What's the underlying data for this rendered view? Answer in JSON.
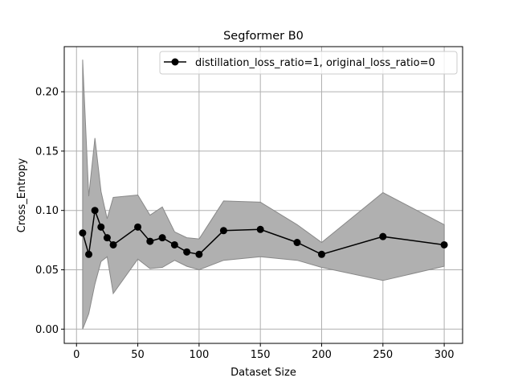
{
  "chart_data": {
    "type": "line",
    "title": "Segformer B0",
    "xlabel": "Dataset Size",
    "ylabel": "Cross_Entropy",
    "xlim": [
      -10,
      315
    ],
    "ylim": [
      -0.012,
      0.238
    ],
    "xticks": [
      0,
      50,
      100,
      150,
      200,
      250,
      300
    ],
    "yticks": [
      0.0,
      0.05,
      0.1,
      0.15,
      0.2
    ],
    "ytick_labels": [
      "0.00",
      "0.05",
      "0.10",
      "0.15",
      "0.20"
    ],
    "grid": true,
    "legend_position": "top-right",
    "colors": {
      "line": "#000000",
      "band_fill": "#b0b0b0",
      "band_edge": "#888888",
      "grid": "#b0b0b0"
    },
    "x": [
      5,
      10,
      15,
      20,
      25,
      30,
      50,
      60,
      70,
      80,
      90,
      100,
      120,
      150,
      180,
      200,
      250,
      300
    ],
    "series": [
      {
        "name": "distillation_loss_ratio=1, original_loss_ratio=0",
        "values": [
          0.081,
          0.063,
          0.1,
          0.086,
          0.077,
          0.071,
          0.086,
          0.074,
          0.077,
          0.071,
          0.065,
          0.063,
          0.083,
          0.084,
          0.073,
          0.063,
          0.078,
          0.071
        ],
        "upper": [
          0.227,
          0.112,
          0.161,
          0.116,
          0.093,
          0.111,
          0.113,
          0.096,
          0.103,
          0.082,
          0.077,
          0.076,
          0.108,
          0.107,
          0.088,
          0.073,
          0.115,
          0.088
        ],
        "lower": [
          0.0,
          0.013,
          0.038,
          0.057,
          0.061,
          0.03,
          0.059,
          0.051,
          0.052,
          0.058,
          0.053,
          0.05,
          0.058,
          0.061,
          0.058,
          0.052,
          0.041,
          0.053
        ]
      }
    ]
  }
}
